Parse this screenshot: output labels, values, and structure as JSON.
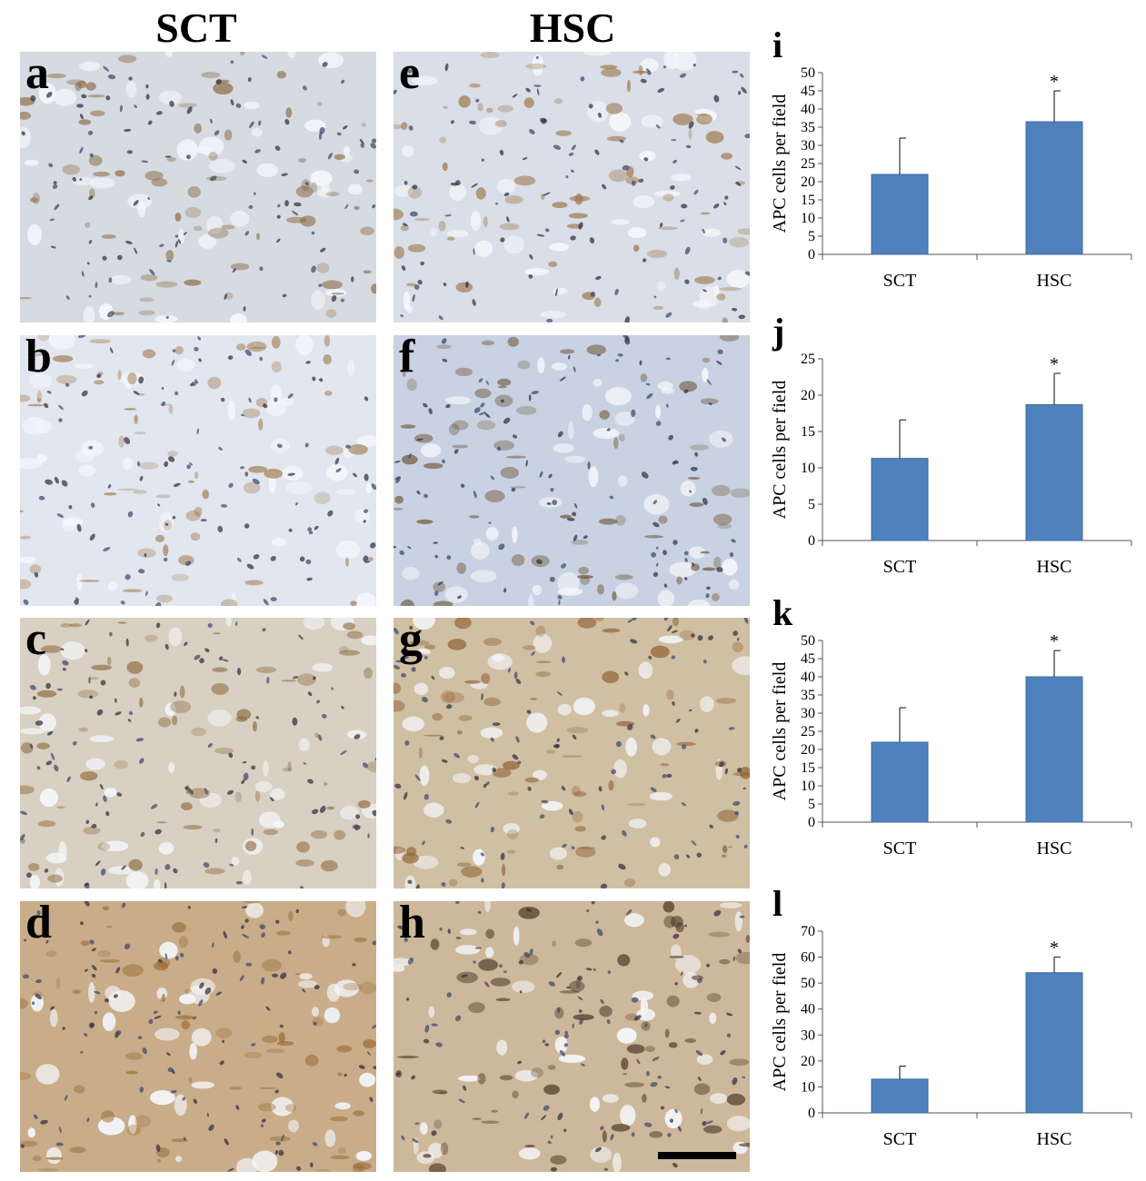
{
  "columns": [
    {
      "label": "SCT"
    },
    {
      "label": "HSC"
    }
  ],
  "panels": [
    {
      "letter": "a",
      "tone": "light-blue-grey",
      "base": "#d6dbe2",
      "stain": "#8a6a43"
    },
    {
      "letter": "b",
      "tone": "light-blue",
      "base": "#e2e6ee",
      "stain": "#a07a50"
    },
    {
      "letter": "c",
      "tone": "beige-blue",
      "base": "#d8d0c2",
      "stain": "#8f6b3e"
    },
    {
      "letter": "d",
      "tone": "brown",
      "base": "#c9ad8a",
      "stain": "#9a6a35"
    },
    {
      "letter": "e",
      "tone": "light-blue-brown",
      "base": "#d9dee8",
      "stain": "#9b7444"
    },
    {
      "letter": "f",
      "tone": "blue-white",
      "base": "#c8d2e2",
      "stain": "#6a5030"
    },
    {
      "letter": "g",
      "tone": "tan",
      "base": "#cfbfa3",
      "stain": "#8e5e2e"
    },
    {
      "letter": "h",
      "tone": "tan-dark",
      "base": "#cdb89b",
      "stain": "#4a3322"
    }
  ],
  "chart_data": [
    {
      "type": "bar",
      "panel_letter": "i",
      "categories": [
        "SCT",
        "HSC"
      ],
      "values": [
        22,
        36.5
      ],
      "errors": [
        10,
        8.5
      ],
      "significance": [
        "",
        "*"
      ],
      "ylabel": "APC cells per field",
      "ylim": [
        0,
        50
      ],
      "yticks": [
        0,
        5,
        10,
        15,
        20,
        25,
        30,
        35,
        40,
        45,
        50
      ],
      "bar_color": "#4f81bd"
    },
    {
      "type": "bar",
      "panel_letter": "j",
      "categories": [
        "SCT",
        "HSC"
      ],
      "values": [
        11.3,
        18.7
      ],
      "errors": [
        5.3,
        4.3
      ],
      "significance": [
        "",
        "*"
      ],
      "ylabel": "APC cells per field",
      "ylim": [
        0,
        25
      ],
      "yticks": [
        0,
        5,
        10,
        15,
        20,
        25
      ],
      "bar_color": "#4f81bd"
    },
    {
      "type": "bar",
      "panel_letter": "k",
      "categories": [
        "SCT",
        "HSC"
      ],
      "values": [
        22,
        40
      ],
      "errors": [
        9.5,
        7.2
      ],
      "significance": [
        "",
        "*"
      ],
      "ylabel": "APC cells per field",
      "ylim": [
        0,
        50
      ],
      "yticks": [
        0,
        5,
        10,
        15,
        20,
        25,
        30,
        35,
        40,
        45,
        50
      ],
      "bar_color": "#4f81bd"
    },
    {
      "type": "bar",
      "panel_letter": "l",
      "categories": [
        "SCT",
        "HSC"
      ],
      "values": [
        13,
        54
      ],
      "errors": [
        5,
        6
      ],
      "significance": [
        "",
        "*"
      ],
      "ylabel": "APC cells per field",
      "ylim": [
        0,
        70
      ],
      "yticks": [
        0,
        10,
        20,
        30,
        40,
        50,
        60,
        70
      ],
      "bar_color": "#4f81bd"
    }
  ]
}
